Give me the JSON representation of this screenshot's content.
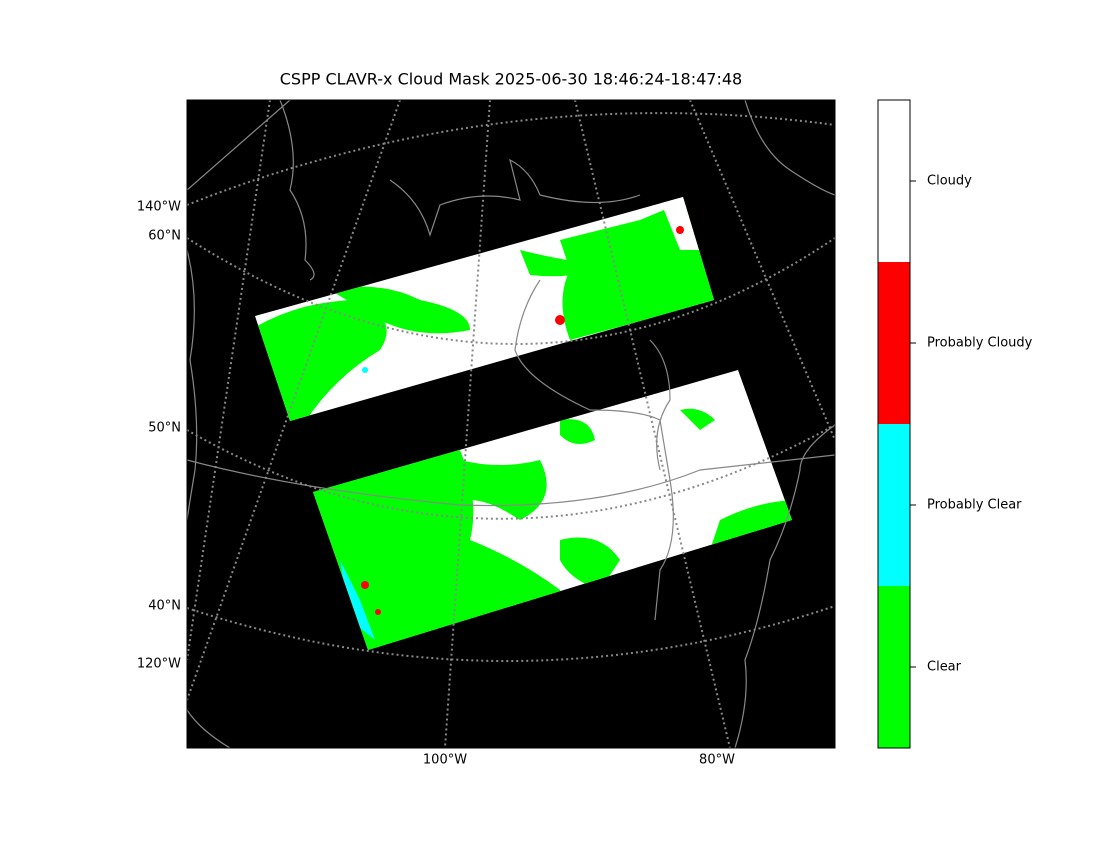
{
  "title": "CSPP CLAVR-x Cloud Mask 2025-06-30 18:46:24-18:47:48",
  "map": {
    "lat_labels": [
      "60°N",
      "50°N",
      "40°N"
    ],
    "lon_labels_left": [
      "140°W",
      "120°W"
    ],
    "lon_labels_bottom": [
      "100°W",
      "80°W"
    ]
  },
  "colorbar": {
    "classes": [
      {
        "label": "Clear",
        "color": "#00ff00"
      },
      {
        "label": "Probably Clear",
        "color": "#00ffff"
      },
      {
        "label": "Probably Cloudy",
        "color": "#ff0000"
      },
      {
        "label": "Cloudy",
        "color": "#ffffff"
      }
    ]
  }
}
